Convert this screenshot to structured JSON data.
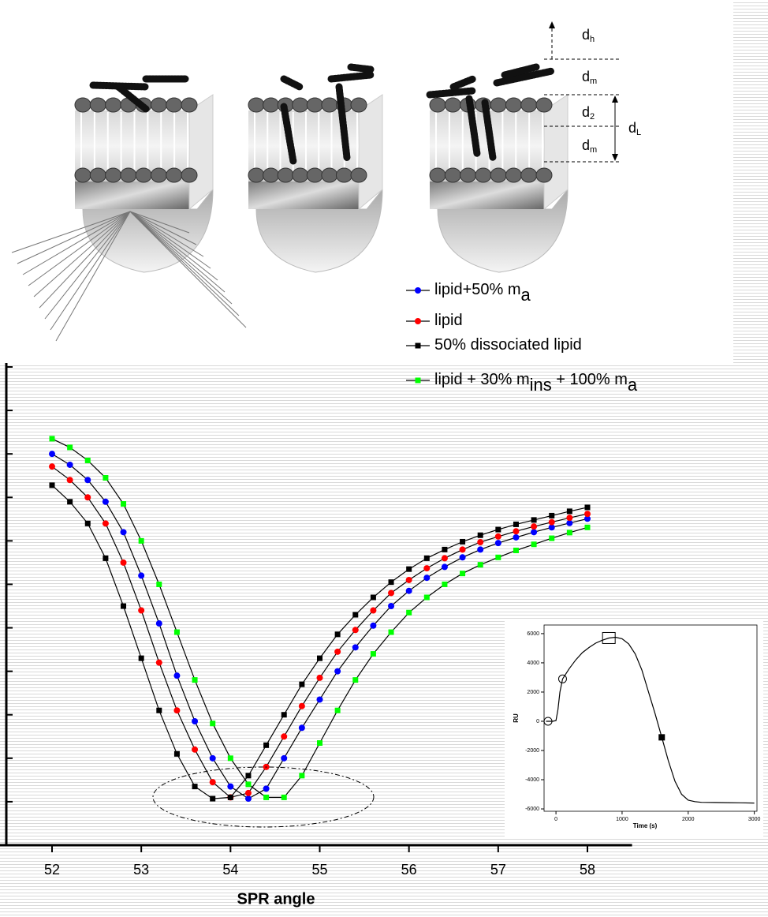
{
  "chart_data": [
    {
      "type": "line",
      "xlabel": "SPR angle",
      "x": [
        52.0,
        52.2,
        52.4,
        52.6,
        52.8,
        53.0,
        53.2,
        53.4,
        53.6,
        53.8,
        54.0,
        54.2,
        54.4,
        54.6,
        54.8,
        55.0,
        55.2,
        55.4,
        55.6,
        55.8,
        56.0,
        56.2,
        56.4,
        56.6,
        56.8,
        57.0,
        57.2,
        57.4,
        57.6,
        57.8,
        58.0
      ],
      "xlim": [
        51.4,
        58.5
      ],
      "xticks": [
        52,
        53,
        54,
        55,
        56,
        57,
        58
      ],
      "ylim": [
        0,
        11
      ],
      "yticks": [
        0,
        1,
        2,
        3,
        4,
        5,
        6,
        7,
        8,
        9,
        10,
        11
      ],
      "line_color": "#000000",
      "legend": "upper right",
      "series": [
        {
          "name_parts": [
            "lipid+50% m",
            "a"
          ],
          "color": "#0000ff",
          "marker": "circle",
          "values": [
            9.0,
            8.75,
            8.4,
            7.9,
            7.2,
            6.2,
            5.1,
            3.9,
            2.85,
            2.0,
            1.35,
            1.07,
            1.3,
            2.0,
            2.7,
            3.35,
            4.0,
            4.55,
            5.05,
            5.5,
            5.85,
            6.15,
            6.4,
            6.62,
            6.8,
            6.95,
            7.08,
            7.2,
            7.31,
            7.41,
            7.51
          ]
        },
        {
          "name_parts": [
            "lipid"
          ],
          "color": "#ff0000",
          "marker": "circle",
          "values": [
            8.71,
            8.4,
            8.0,
            7.4,
            6.5,
            5.4,
            4.2,
            3.1,
            2.2,
            1.45,
            1.1,
            1.2,
            1.8,
            2.5,
            3.2,
            3.85,
            4.45,
            4.95,
            5.4,
            5.8,
            6.1,
            6.37,
            6.6,
            6.8,
            6.97,
            7.1,
            7.22,
            7.33,
            7.43,
            7.53,
            7.62
          ]
        },
        {
          "name_parts": [
            "50% dissociated lipid"
          ],
          "color": "#000000",
          "marker": "square",
          "values": [
            8.28,
            7.9,
            7.4,
            6.6,
            5.5,
            4.3,
            3.1,
            2.1,
            1.35,
            1.07,
            1.1,
            1.6,
            2.3,
            3.0,
            3.7,
            4.3,
            4.85,
            5.3,
            5.7,
            6.05,
            6.35,
            6.6,
            6.8,
            6.98,
            7.13,
            7.26,
            7.38,
            7.48,
            7.58,
            7.68,
            7.77
          ]
        },
        {
          "name_parts": [
            "lipid + 30% m",
            "ins",
            " + 100% m",
            "a"
          ],
          "color": "#00ff00",
          "marker": "square",
          "values": [
            9.35,
            9.15,
            8.85,
            8.45,
            7.85,
            7.0,
            6.0,
            4.9,
            3.8,
            2.8,
            2.0,
            1.4,
            1.1,
            1.1,
            1.6,
            2.35,
            3.1,
            3.8,
            4.4,
            4.9,
            5.35,
            5.7,
            6.0,
            6.25,
            6.45,
            6.62,
            6.78,
            6.92,
            7.06,
            7.19,
            7.31
          ]
        }
      ]
    },
    {
      "type": "line",
      "xlabel": "Time (s)",
      "ylabel": "RU",
      "x": [
        -150,
        -50,
        0,
        30,
        60,
        100,
        200,
        300,
        400,
        500,
        600,
        700,
        800,
        900,
        1000,
        1100,
        1200,
        1300,
        1400,
        1500,
        1600,
        1700,
        1800,
        1900,
        2000,
        2100,
        2200,
        2400,
        2600,
        2800,
        3000
      ],
      "xlim": [
        -180,
        3040
      ],
      "xticks": [
        0,
        1000,
        2000,
        3000
      ],
      "ylim": [
        -6160,
        6590
      ],
      "yticks": [
        6000,
        4000,
        2000,
        0,
        -2000,
        -4000,
        -6000
      ],
      "series": [
        {
          "color": "#000000",
          "values": [
            0,
            0,
            50,
            800,
            2000,
            2900,
            3600,
            4200,
            4700,
            5050,
            5350,
            5550,
            5700,
            5750,
            5650,
            5300,
            4600,
            3500,
            2000,
            500,
            -1100,
            -2700,
            -4100,
            -5000,
            -5400,
            -5500,
            -5550,
            -5560,
            -5570,
            -5580,
            -5600
          ]
        }
      ],
      "markers": [
        {
          "x": -120,
          "y": 0,
          "shape": "open-circle"
        },
        {
          "x": 100,
          "y": 2900,
          "shape": "open-circle"
        },
        {
          "x": 800,
          "y": 5700,
          "shape": "open-square"
        },
        {
          "x": 1600,
          "y": -1100,
          "shape": "filled-square"
        }
      ]
    }
  ],
  "annotations": [
    {
      "text": "d",
      "sub": "h"
    },
    {
      "text": "d",
      "sub": "m"
    },
    {
      "text": "d",
      "sub": "2"
    },
    {
      "text": "d",
      "sub": "m"
    },
    {
      "text": "d",
      "sub": "L"
    }
  ]
}
